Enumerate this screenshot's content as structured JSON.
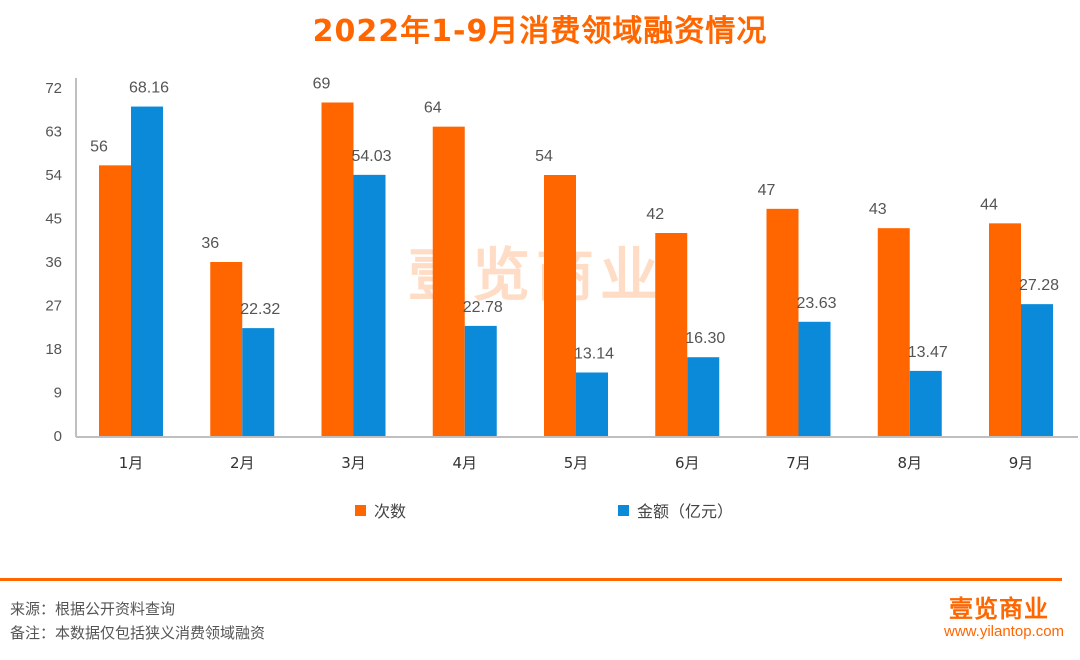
{
  "title": "2022年1-9月消费领域融资情况",
  "colors": {
    "title": "#FF6600",
    "series_count": "#FF6600",
    "series_amount": "#0A8AD8",
    "axis": "#BFBFBF",
    "divider": "#FF6600",
    "brand": "#FF6600"
  },
  "chart_data": {
    "type": "bar",
    "title": "2022年1-9月消费领域融资情况",
    "xlabel": "",
    "ylabel": "",
    "ylim": [
      0,
      72
    ],
    "yticks": [
      0,
      9,
      18,
      27,
      36,
      45,
      54,
      63,
      72
    ],
    "grid": false,
    "legend_position": "bottom",
    "categories": [
      "1月",
      "2月",
      "3月",
      "4月",
      "5月",
      "6月",
      "7月",
      "8月",
      "9月"
    ],
    "series": [
      {
        "name": "次数",
        "values": [
          56,
          36,
          69,
          64,
          54,
          42,
          47,
          43,
          44
        ],
        "labels": [
          "56",
          "36",
          "69",
          "64",
          "54",
          "42",
          "47",
          "43",
          "44"
        ]
      },
      {
        "name": "金额（亿元）",
        "values": [
          68.16,
          22.32,
          54.03,
          22.78,
          13.14,
          16.3,
          23.63,
          13.47,
          27.28
        ],
        "labels": [
          "68.16",
          "22.32",
          "54.03",
          "22.78",
          "13.14",
          "16.30",
          "23.63",
          "13.47",
          "27.28"
        ]
      }
    ]
  },
  "legend": [
    {
      "label": "次数"
    },
    {
      "label": "金额（亿元）"
    }
  ],
  "watermark": "壹览商业",
  "footer": {
    "source": "来源：根据公开资料查询",
    "note": "备注：本数据仅包括狭义消费领域融资",
    "logo_text": "壹览商业",
    "logo_url": "www.yilantop.com"
  }
}
